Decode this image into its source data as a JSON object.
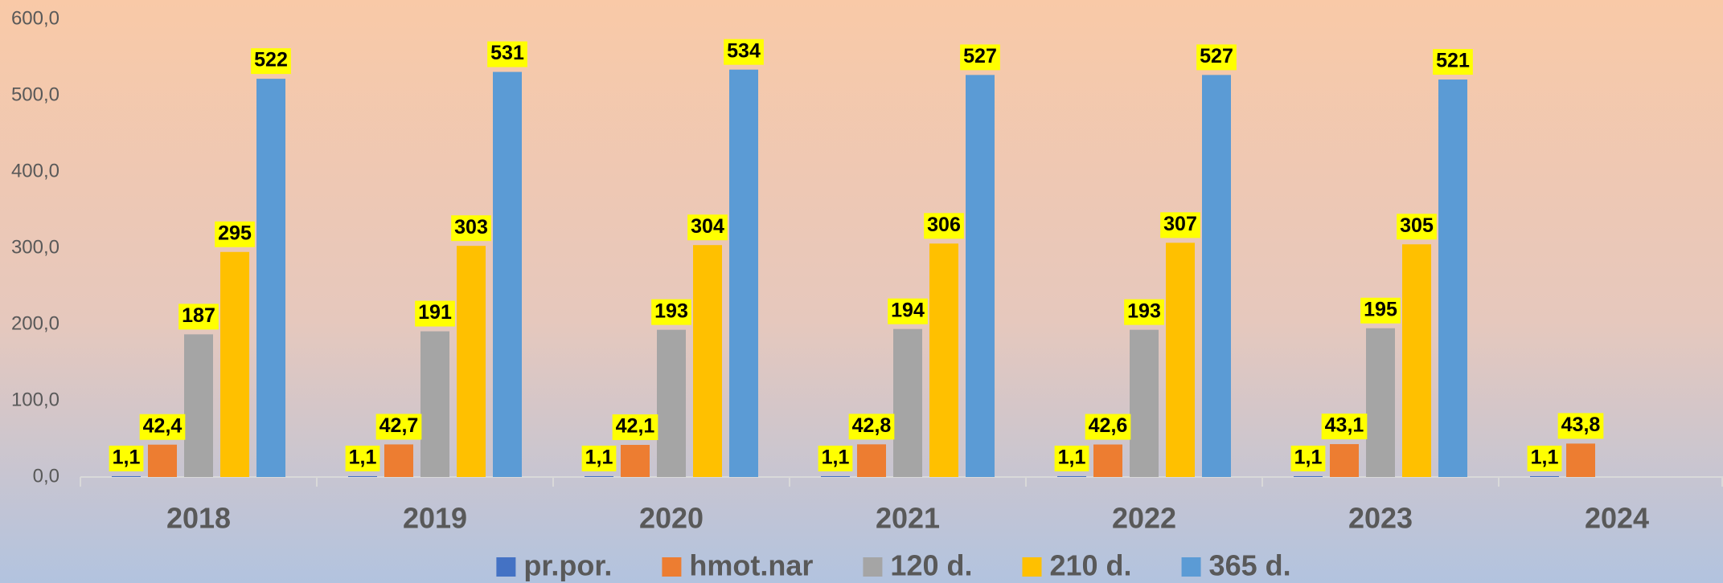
{
  "chart_data": {
    "type": "bar",
    "categories": [
      "2018",
      "2019",
      "2020",
      "2021",
      "2022",
      "2023",
      "2024"
    ],
    "series": [
      {
        "name": "pr.por.",
        "color": "#4472c4",
        "values": [
          1.1,
          1.1,
          1.1,
          1.1,
          1.1,
          1.1,
          1.1
        ],
        "value_labels": [
          "1,1",
          "1,1",
          "1,1",
          "1,1",
          "1,1",
          "1,1",
          "1,1"
        ]
      },
      {
        "name": "hmot.nar",
        "color": "#ed7d31",
        "values": [
          42.4,
          42.7,
          42.1,
          42.8,
          42.6,
          43.1,
          43.8
        ],
        "value_labels": [
          "42,4",
          "42,7",
          "42,1",
          "42,8",
          "42,6",
          "43,1",
          "43,8"
        ]
      },
      {
        "name": "120 d.",
        "color": "#a5a5a5",
        "values": [
          187,
          191,
          193,
          194,
          193,
          195,
          null
        ]
      },
      {
        "name": "210 d.",
        "color": "#ffc000",
        "values": [
          295,
          303,
          304,
          306,
          307,
          305,
          null
        ]
      },
      {
        "name": "365 d.",
        "color": "#5b9bd5",
        "values": [
          522,
          531,
          534,
          527,
          527,
          521,
          null
        ]
      }
    ],
    "ylim": [
      0,
      600
    ],
    "yticks": [
      {
        "value": 0,
        "label": "0,0"
      },
      {
        "value": 100,
        "label": "100,0"
      },
      {
        "value": 200,
        "label": "200,0"
      },
      {
        "value": 300,
        "label": "300,0"
      },
      {
        "value": 400,
        "label": "400,0"
      },
      {
        "value": 500,
        "label": "500,0"
      },
      {
        "value": 600,
        "label": "600,0"
      }
    ],
    "legend": "bottom"
  }
}
